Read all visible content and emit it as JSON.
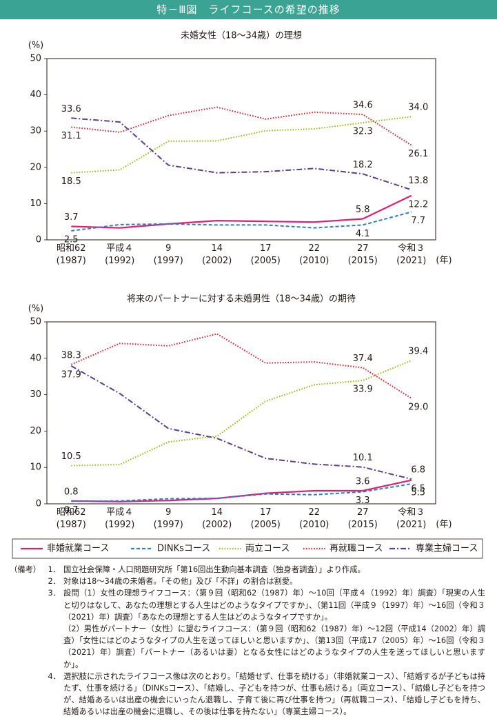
{
  "header": {
    "title": "特－Ⅲ図　ライフコースの希望の推移"
  },
  "chart_data": [
    {
      "type": "line",
      "title": "未婚女性（18～34歳）の理想",
      "y_label": "(%)",
      "x_label": "(年)",
      "categories": [
        "昭和62\n(1987)",
        "平成４\n(1992)",
        "9\n(1997)",
        "14\n(2002)",
        "17\n(2005)",
        "22\n(2010)",
        "27\n(2015)",
        "令和３\n(2021)"
      ],
      "ylim": [
        0,
        50
      ],
      "yticks": [
        0,
        10,
        20,
        30,
        40,
        50
      ],
      "series": [
        {
          "name": "非婚就業コース",
          "color": "#e0206e",
          "style": "solid",
          "values": [
            3.7,
            3.3,
            4.4,
            5.3,
            5.1,
            4.9,
            5.8,
            12.2
          ],
          "value_labels": [
            "3.7",
            null,
            null,
            null,
            null,
            null,
            "5.8",
            "12.2"
          ]
        },
        {
          "name": "DINKsコース",
          "color": "#2a7fc4",
          "style": "dashed",
          "values": [
            2.5,
            4.2,
            4.4,
            4.1,
            4.1,
            3.3,
            4.1,
            7.7
          ],
          "value_labels": [
            "2.5",
            null,
            null,
            null,
            null,
            null,
            "4.1",
            "7.7"
          ]
        },
        {
          "name": "両立コース",
          "color": "#9cbb1a",
          "style": "dotted",
          "values": [
            18.5,
            19.3,
            27.2,
            27.3,
            30.1,
            30.6,
            32.3,
            34.0
          ],
          "value_labels": [
            "18.5",
            null,
            null,
            null,
            null,
            null,
            "32.3",
            "34.0"
          ]
        },
        {
          "name": "再就職コース",
          "color": "#e0202e",
          "style": "dotted",
          "values": [
            31.1,
            29.7,
            34.3,
            36.6,
            33.3,
            35.2,
            34.6,
            26.1
          ],
          "value_labels": [
            "31.1",
            null,
            null,
            null,
            null,
            null,
            "34.6",
            "26.1"
          ]
        },
        {
          "name": "専業主婦コース",
          "color": "#5b3e8c",
          "style": "dashdot",
          "values": [
            33.6,
            32.5,
            20.6,
            18.5,
            18.8,
            19.7,
            18.2,
            13.8
          ],
          "value_labels": [
            "33.6",
            null,
            null,
            null,
            null,
            null,
            "18.2",
            "13.8"
          ]
        }
      ]
    },
    {
      "type": "line",
      "title": "将来のパートナーに対する未婚男性（18～34歳）の期待",
      "y_label": "(%)",
      "x_label": "(年)",
      "categories": [
        "昭和62\n(1987)",
        "平成４\n(1992)",
        "9\n(1997)",
        "14\n(2002)",
        "17\n(2005)",
        "22\n(2010)",
        "27\n(2015)",
        "令和３\n(2021)"
      ],
      "ylim": [
        0,
        50
      ],
      "yticks": [
        0,
        10,
        20,
        30,
        40,
        50
      ],
      "series": [
        {
          "name": "非婚就業コース",
          "color": "#e0206e",
          "style": "solid",
          "values": [
            0.8,
            0.6,
            0.9,
            1.5,
            2.9,
            3.6,
            3.6,
            6.5
          ],
          "value_labels": [
            "0.8",
            null,
            null,
            null,
            null,
            null,
            "3.6",
            "6.5"
          ]
        },
        {
          "name": "DINKsコース",
          "color": "#2a7fc4",
          "style": "dashed",
          "values": [
            0.7,
            0.8,
            1.4,
            1.5,
            2.7,
            2.5,
            3.3,
            5.5
          ],
          "value_labels": [
            "0.7",
            null,
            null,
            null,
            null,
            null,
            "3.3",
            "5.5"
          ]
        },
        {
          "name": "両立コース",
          "color": "#9cbb1a",
          "style": "dotted",
          "values": [
            10.5,
            10.8,
            17.0,
            18.6,
            28.2,
            32.7,
            33.9,
            39.4
          ],
          "value_labels": [
            "10.5",
            null,
            null,
            null,
            null,
            null,
            "33.9",
            "39.4"
          ]
        },
        {
          "name": "再就職コース",
          "color": "#e0202e",
          "style": "dotted",
          "values": [
            38.3,
            44.1,
            43.4,
            46.7,
            38.7,
            39.0,
            37.4,
            29.0
          ],
          "value_labels": [
            "38.3",
            null,
            null,
            null,
            null,
            null,
            "37.4",
            "29.0"
          ]
        },
        {
          "name": "専業主婦コース",
          "color": "#5b3e8c",
          "style": "dashdot",
          "values": [
            37.9,
            30.3,
            20.7,
            18.0,
            12.5,
            10.9,
            10.1,
            6.8
          ],
          "value_labels": [
            "37.9",
            null,
            null,
            null,
            null,
            null,
            "10.1",
            "6.8"
          ]
        }
      ]
    }
  ],
  "notes": {
    "label": "（備考）",
    "items": [
      {
        "num": "1．",
        "text": "国立社会保障・人口問題研究所「第16回出生動向基本調査（独身者調査）」より作成。"
      },
      {
        "num": "2．",
        "text": "対象は18～34歳の未婚者。「その他」及び「不詳」の割合は割愛。"
      },
      {
        "num": "3．",
        "text": "設問（1）女性の理想ライフコース：（第９回（昭和62（1987）年）～10回（平成４（1992）年）調査）「現実の人生と切りはなして、あなたの理想とする人生はどのようなタイプですか」、（第11回（平成９（1997）年）～16回（令和３（2021）年）調査）「あなたの理想とする人生はどのようなタイプですか」。",
        "sub": "（2）男性がパートナー（女性）に望むライフコース：（第９回（昭和62（1987）年）～12回（平成14（2002）年）調査）「女性にはどのようなタイプの人生を送ってほしいと思いますか」、（第13回（平成17（2005）年）～16回（令和３（2021）年）調査）「パートナー（あるいは妻）となる女性にはどのようなタイプの人生を送ってほしいと思いますか」。"
      },
      {
        "num": "4．",
        "text": "選択肢に示されたライフコース像は次のとおり。「結婚せず、仕事を続ける」（非婚就業コース）、「結婚するが子どもは持たず、仕事を続ける」（DINKsコース）、「結婚し、子どもを持つが、仕事も続ける」（両立コース）、「結婚し子どもを持つが、結婚あるいは出産の機会にいったん退職し、子育て後に再び仕事を持つ」（再就職コース）、「結婚し子どもを持ち、結婚あるいは出産の機会に退職し、その後は仕事を持たない」（専業主婦コース）。"
      }
    ]
  }
}
